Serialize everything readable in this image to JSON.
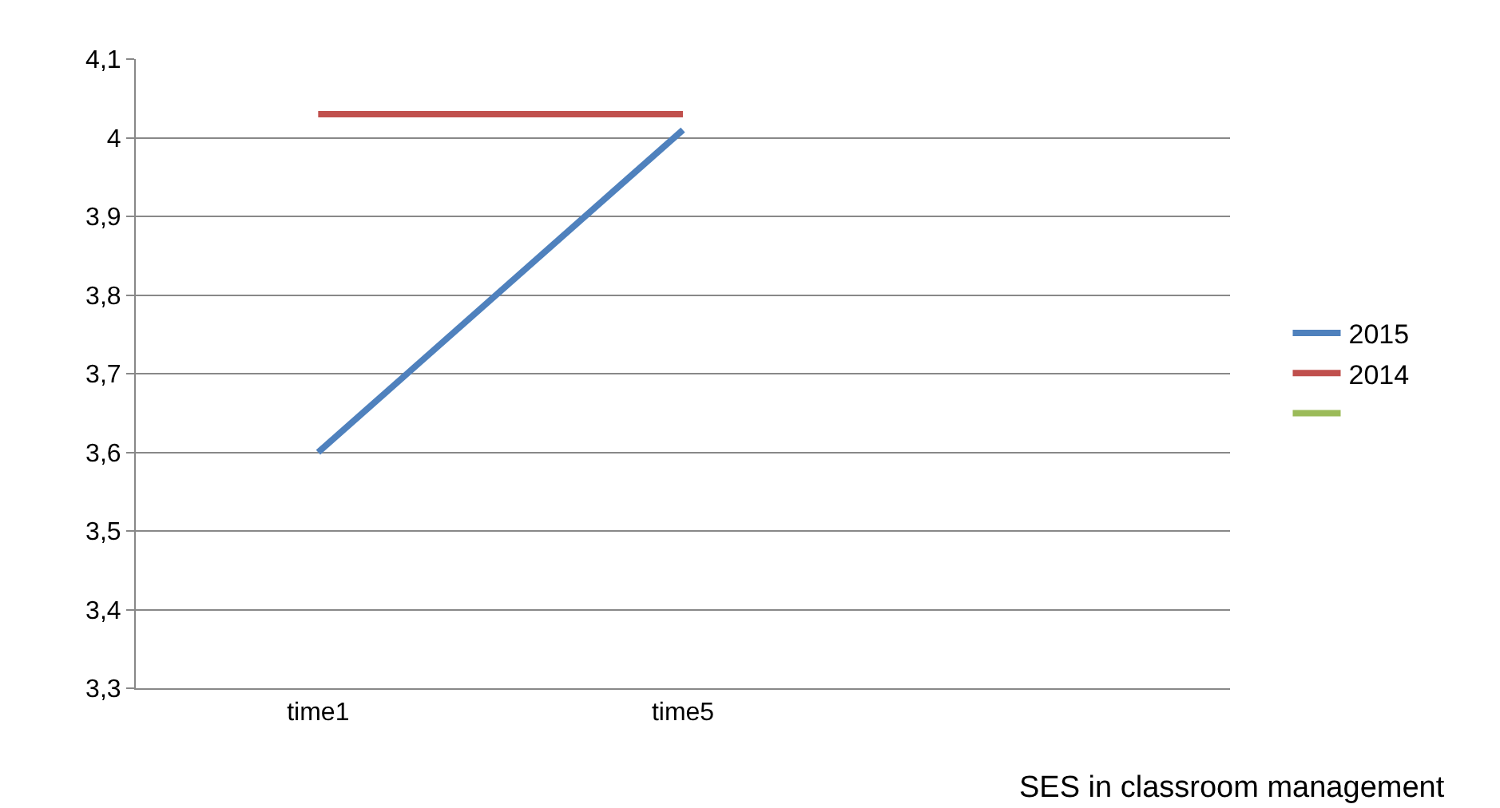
{
  "chart_data": {
    "type": "line",
    "xlabel": "SES in classroom management",
    "categories": [
      "time1",
      "time5",
      null
    ],
    "series": [
      {
        "name": "2015",
        "color": "#4f81bd",
        "values": [
          3.6,
          4.01,
          null
        ]
      },
      {
        "name": "2014",
        "color": "#c0504d",
        "values": [
          4.03,
          4.03,
          null
        ]
      },
      {
        "color": "#9bbb59",
        "values": [
          null,
          null,
          null
        ]
      }
    ],
    "ylim": [
      3.3,
      4.1
    ],
    "yticks": [
      {
        "value": 3.3,
        "label": "3,3"
      },
      {
        "value": 3.4,
        "label": "3,4"
      },
      {
        "value": 3.5,
        "label": "3,5"
      },
      {
        "value": 3.6,
        "label": "3,6"
      },
      {
        "value": 3.7,
        "label": "3,7"
      },
      {
        "value": 3.8,
        "label": "3,8"
      },
      {
        "value": 3.9,
        "label": "3,9"
      },
      {
        "value": 4.0,
        "label": "4"
      },
      {
        "value": 4.1,
        "label": "4,1"
      }
    ],
    "grid": "y",
    "legend": "right",
    "marker": "none",
    "line_style": "solid"
  }
}
